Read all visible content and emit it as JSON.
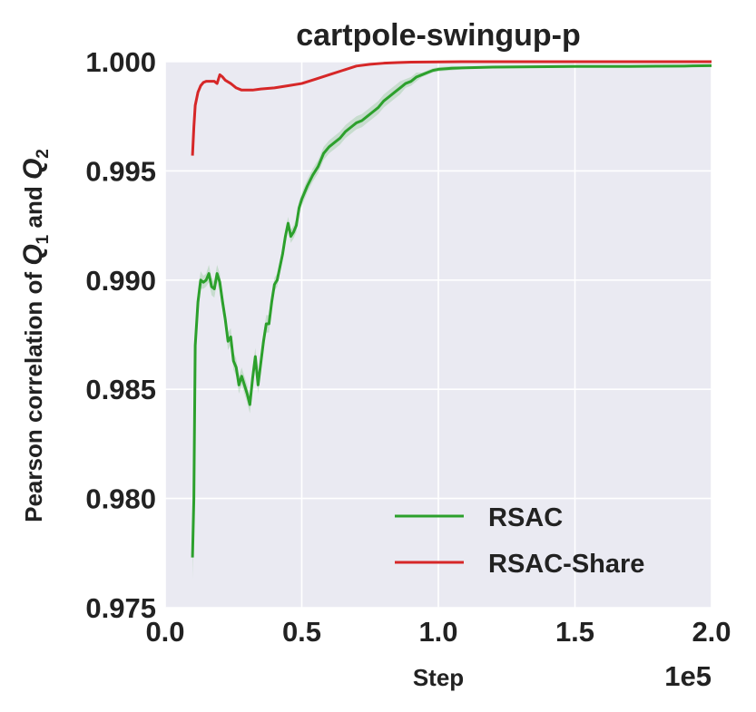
{
  "chart_data": {
    "type": "line",
    "title": "cartpole-swingup-p",
    "xlabel": "Step",
    "ylabel_text": "Pearson correlation of",
    "ylabel_q1": "Q",
    "ylabel_sub1": "1",
    "ylabel_and": "and",
    "ylabel_q2": "Q",
    "ylabel_sub2": "2",
    "x_offset_label": "1e5",
    "xlim": [
      0.0,
      2.0
    ],
    "ylim": [
      0.975,
      1.0
    ],
    "xticks": [
      "0.0",
      "0.5",
      "1.0",
      "1.5",
      "2.0"
    ],
    "xtick_values": [
      0.0,
      0.5,
      1.0,
      1.5,
      2.0
    ],
    "yticks": [
      "0.975",
      "0.980",
      "0.985",
      "0.990",
      "0.995",
      "1.000"
    ],
    "ytick_values": [
      0.975,
      0.98,
      0.985,
      0.99,
      0.995,
      1.0
    ],
    "grid": true,
    "legend_placement": "lower-right",
    "series": [
      {
        "name": "RSAC",
        "color": "#2ca02c",
        "x": [
          0.1,
          0.105,
          0.11,
          0.12,
          0.13,
          0.14,
          0.15,
          0.16,
          0.17,
          0.18,
          0.19,
          0.2,
          0.21,
          0.22,
          0.23,
          0.24,
          0.25,
          0.26,
          0.27,
          0.28,
          0.29,
          0.3,
          0.31,
          0.32,
          0.33,
          0.34,
          0.35,
          0.36,
          0.37,
          0.38,
          0.39,
          0.4,
          0.41,
          0.42,
          0.43,
          0.44,
          0.45,
          0.46,
          0.47,
          0.48,
          0.49,
          0.5,
          0.52,
          0.54,
          0.56,
          0.58,
          0.6,
          0.62,
          0.64,
          0.66,
          0.68,
          0.7,
          0.72,
          0.74,
          0.76,
          0.78,
          0.8,
          0.82,
          0.84,
          0.86,
          0.88,
          0.9,
          0.92,
          0.94,
          0.96,
          0.98,
          1.0,
          1.05,
          1.1,
          1.2,
          1.3,
          1.4,
          1.5,
          1.6,
          1.7,
          1.8,
          1.9,
          2.0
        ],
        "y": [
          0.9773,
          0.98,
          0.987,
          0.989,
          0.99,
          0.9899,
          0.99,
          0.9903,
          0.9897,
          0.9896,
          0.9903,
          0.9899,
          0.989,
          0.9882,
          0.9872,
          0.9874,
          0.9863,
          0.986,
          0.9852,
          0.9856,
          0.9852,
          0.9848,
          0.9843,
          0.9855,
          0.9865,
          0.9852,
          0.9862,
          0.9872,
          0.988,
          0.988,
          0.989,
          0.9898,
          0.99,
          0.9906,
          0.9912,
          0.992,
          0.9926,
          0.992,
          0.9922,
          0.9925,
          0.9933,
          0.9937,
          0.9943,
          0.9948,
          0.9952,
          0.9958,
          0.9961,
          0.9963,
          0.9965,
          0.9968,
          0.997,
          0.9972,
          0.9973,
          0.9975,
          0.9977,
          0.9979,
          0.9982,
          0.9984,
          0.9986,
          0.9988,
          0.999,
          0.9991,
          0.9993,
          0.9994,
          0.9995,
          0.9996,
          0.99965,
          0.9997,
          0.99972,
          0.99975,
          0.99976,
          0.99977,
          0.99978,
          0.99978,
          0.99978,
          0.99979,
          0.9998,
          0.99982
        ],
        "band": [
          0.001,
          0.0012,
          0.0008,
          0.0006,
          0.0004,
          0.0003,
          0.0003,
          0.0004,
          0.0004,
          0.0004,
          0.0004,
          0.0004,
          0.0004,
          0.0004,
          0.0004,
          0.0004,
          0.0004,
          0.0004,
          0.0004,
          0.0004,
          0.0004,
          0.0004,
          0.0004,
          0.0004,
          0.0004,
          0.0004,
          0.0004,
          0.0004,
          0.0004,
          0.0004,
          0.0003,
          0.0003,
          0.0003,
          0.0003,
          0.0003,
          0.0003,
          0.0003,
          0.0003,
          0.0003,
          0.0003,
          0.0003,
          0.0003,
          0.0003,
          0.0003,
          0.0003,
          0.0003,
          0.0003,
          0.0003,
          0.0003,
          0.0003,
          0.0003,
          0.0003,
          0.0003,
          0.0003,
          0.0003,
          0.0003,
          0.0003,
          0.0003,
          0.0003,
          0.0003,
          0.0002,
          0.0002,
          0.0002,
          0.0001,
          0.0001,
          0.0001,
          0.0001,
          0.0001,
          5e-05,
          5e-05,
          5e-05,
          5e-05,
          5e-05,
          5e-05,
          5e-05,
          5e-05,
          5e-05,
          5e-05
        ]
      },
      {
        "name": "RSAC-Share",
        "color": "#d62728",
        "x": [
          0.1,
          0.105,
          0.11,
          0.12,
          0.13,
          0.14,
          0.15,
          0.16,
          0.17,
          0.18,
          0.19,
          0.2,
          0.21,
          0.22,
          0.24,
          0.26,
          0.28,
          0.3,
          0.32,
          0.35,
          0.38,
          0.4,
          0.45,
          0.5,
          0.55,
          0.6,
          0.65,
          0.7,
          0.75,
          0.8,
          0.85,
          0.9,
          1.0,
          1.1,
          1.2,
          1.4,
          1.6,
          1.8,
          2.0
        ],
        "y": [
          0.9957,
          0.997,
          0.998,
          0.9986,
          0.9989,
          0.99905,
          0.9991,
          0.9991,
          0.9991,
          0.9991,
          0.999,
          0.9994,
          0.9993,
          0.99915,
          0.999,
          0.9988,
          0.9987,
          0.9987,
          0.9987,
          0.99875,
          0.99878,
          0.9988,
          0.9989,
          0.999,
          0.9992,
          0.9994,
          0.9996,
          0.9998,
          0.99988,
          0.99993,
          0.99996,
          0.99998,
          0.99999,
          1.0,
          1.0,
          1.0,
          1.0,
          1.0,
          1.0
        ]
      }
    ]
  }
}
